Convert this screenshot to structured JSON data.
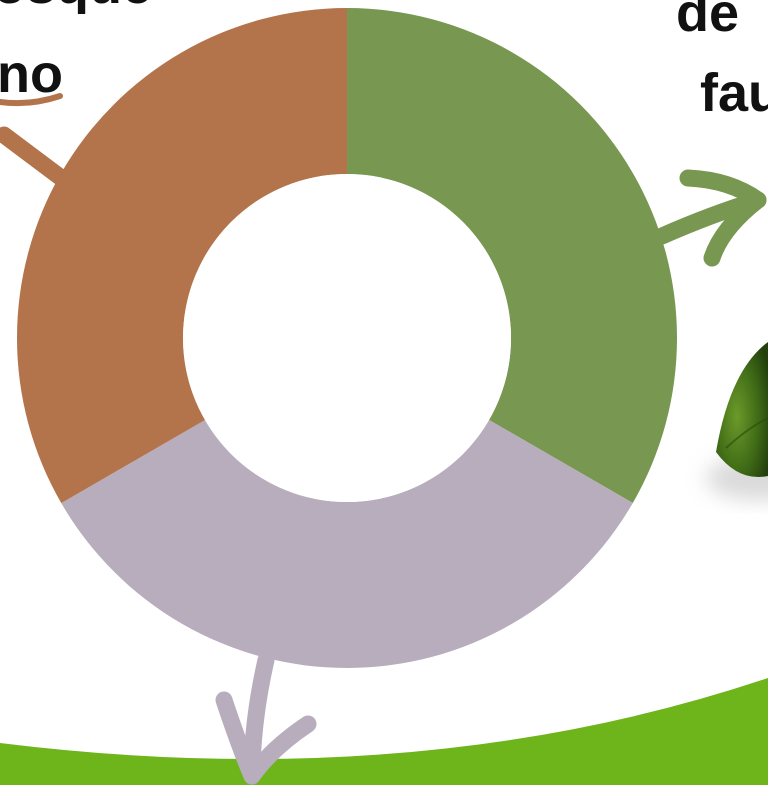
{
  "labels": {
    "top_left_line1": "bosque",
    "top_left_line2": "no",
    "top_right_line1": "de",
    "top_right_line2": "fau"
  },
  "colors": {
    "background": "#ffffff",
    "ground": "#6db51b",
    "leaf": "#4e7a1a"
  },
  "chart_data": {
    "type": "pie",
    "donut": true,
    "values": [
      33.33,
      33.33,
      33.34
    ],
    "colors": [
      "#789751",
      "#b8adbd",
      "#b3734b"
    ],
    "start_angle_deg": 0,
    "direction": "clockwise"
  }
}
